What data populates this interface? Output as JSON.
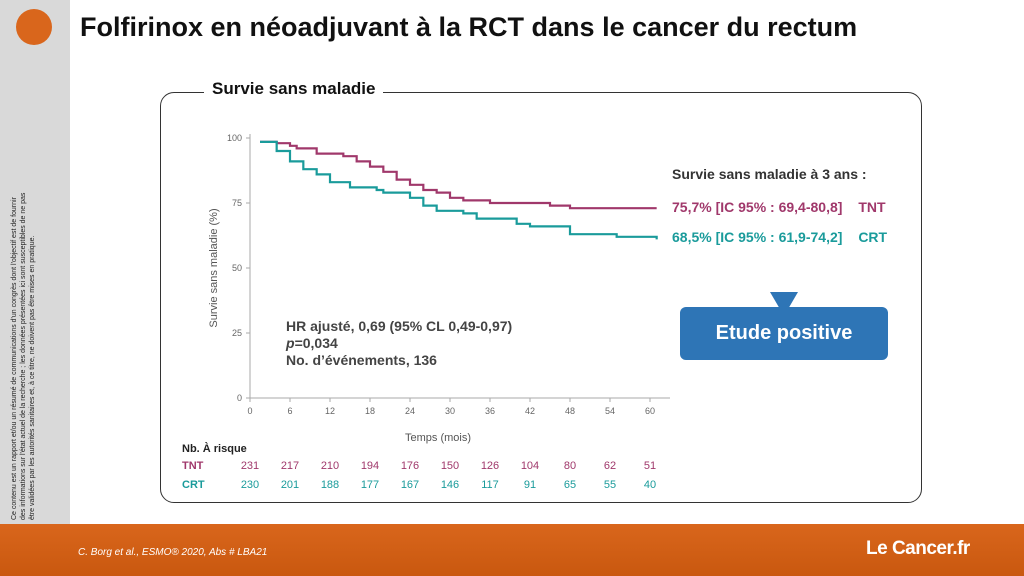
{
  "title": "Folfirinox en néoadjuvant à la RCT dans le cancer du rectum",
  "disclaimer": "Ce contenu est un rapport et/ou un résumé de communications d'un congrès dont l'objectif est de fournir des informations sur l'état actuel de la recherche ; les données présentées ici sont susceptibles de ne pas être validées par les autorités sanitaires et, à ce titre, ne doivent pas être mises en pratique.",
  "panel_title": "Survie sans maladie",
  "stats": {
    "hr": "HR ajusté, 0,69 (95% CL 0,49-0,97)",
    "p_label": "p",
    "p_value": "=0,034",
    "events": "No. d’événements, 136"
  },
  "results": {
    "title": "Survie sans maladie à 3 ans :",
    "tnt_value": "75,7% [IC 95% : 69,4-80,8]",
    "tnt_group": "TNT",
    "crt_value": "68,5% [IC 95% : 61,9-74,2]",
    "crt_group": "CRT"
  },
  "callout": "Etude positive",
  "risk_table": {
    "title": "Nb. À  risque",
    "rows": [
      {
        "name": "TNT",
        "values": [
          "231",
          "217",
          "210",
          "194",
          "176",
          "150",
          "126",
          "104",
          "80",
          "62",
          "51"
        ]
      },
      {
        "name": "CRT",
        "values": [
          "230",
          "201",
          "188",
          "177",
          "167",
          "146",
          "117",
          "91",
          "65",
          "55",
          "40"
        ]
      }
    ]
  },
  "colors": {
    "tnt": "#a0386b",
    "crt": "#1a9b9b",
    "accent": "#d9661c",
    "callout": "#2e75b6"
  },
  "citation": "C. Borg et al., ESMO® 2020, Abs # LBA21",
  "brand": "Le Cancer.fr",
  "chart_data": {
    "type": "line",
    "xlabel": "Temps (mois)",
    "ylabel": "Survie sans maladie (%)",
    "xlim": [
      0,
      63
    ],
    "ylim": [
      0,
      100
    ],
    "x_ticks": [
      "0",
      "6",
      "12",
      "18",
      "24",
      "30",
      "36",
      "42",
      "48",
      "54",
      "60"
    ],
    "y_ticks": [
      "0",
      "25",
      "50",
      "75",
      "100"
    ],
    "series": [
      {
        "name": "TNT",
        "color": "#a0386b",
        "points": [
          [
            1.5,
            98.5
          ],
          [
            4,
            98
          ],
          [
            6,
            97
          ],
          [
            7,
            96
          ],
          [
            10,
            94
          ],
          [
            14,
            93
          ],
          [
            16,
            91
          ],
          [
            18,
            89
          ],
          [
            20,
            87
          ],
          [
            22,
            84
          ],
          [
            24,
            82
          ],
          [
            26,
            80
          ],
          [
            28,
            79
          ],
          [
            30,
            77
          ],
          [
            32,
            76
          ],
          [
            36,
            75
          ],
          [
            42,
            75
          ],
          [
            45,
            74
          ],
          [
            48,
            73
          ],
          [
            55,
            73
          ],
          [
            61,
            73
          ]
        ]
      },
      {
        "name": "CRT",
        "color": "#1a9b9b",
        "points": [
          [
            1.5,
            98.5
          ],
          [
            4,
            95
          ],
          [
            6,
            91
          ],
          [
            8,
            88
          ],
          [
            10,
            86
          ],
          [
            12,
            83
          ],
          [
            15,
            81
          ],
          [
            19,
            80
          ],
          [
            20,
            79
          ],
          [
            24,
            77
          ],
          [
            26,
            74
          ],
          [
            28,
            72
          ],
          [
            32,
            71
          ],
          [
            34,
            69
          ],
          [
            40,
            67
          ],
          [
            42,
            66
          ],
          [
            48,
            63
          ],
          [
            55,
            62
          ],
          [
            58,
            62
          ],
          [
            61,
            61
          ]
        ]
      }
    ]
  }
}
